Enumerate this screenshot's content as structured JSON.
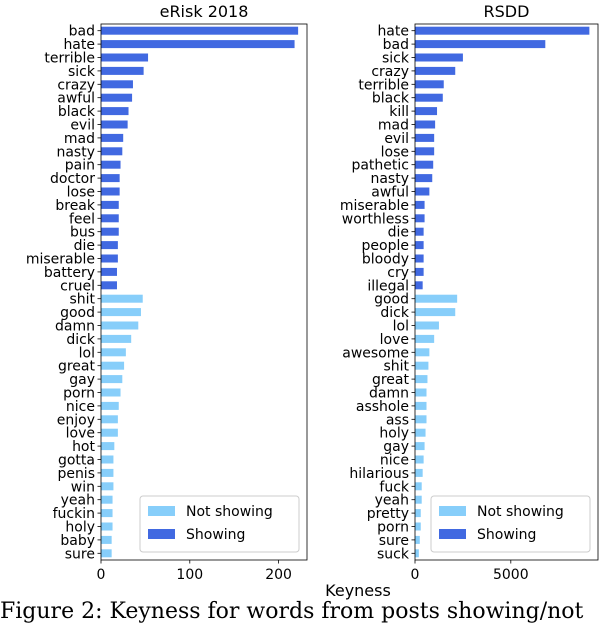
{
  "colors": {
    "showing": "#4169E1",
    "not_showing": "#87CEFA"
  },
  "legend": {
    "not_showing": "Not showing",
    "showing": "Showing"
  },
  "xlabel": "Keyness",
  "caption": "Figure 2: Keyness for words from posts showing/not",
  "chart_data": [
    {
      "type": "bar",
      "orientation": "horizontal",
      "title": "eRisk 2018",
      "xlim": [
        0,
        232
      ],
      "xticks": [
        0,
        100,
        200
      ],
      "legend_position": "lower-right",
      "categories": [
        "bad",
        "hate",
        "terrible",
        "sick",
        "crazy",
        "awful",
        "black",
        "evil",
        "mad",
        "nasty",
        "pain",
        "doctor",
        "lose",
        "break",
        "feel",
        "bus",
        "die",
        "miserable",
        "battery",
        "cruel",
        "shit",
        "good",
        "damn",
        "dick",
        "lol",
        "great",
        "gay",
        "porn",
        "nice",
        "enjoy",
        "love",
        "hot",
        "gotta",
        "penis",
        "win",
        "yeah",
        "fuckin",
        "holy",
        "baby",
        "sure"
      ],
      "values": [
        222,
        218,
        53,
        48,
        36,
        35,
        31,
        30,
        25,
        24,
        22,
        21,
        21,
        20,
        20,
        20,
        19,
        19,
        18,
        18,
        47,
        45,
        42,
        34,
        28,
        26,
        24,
        22,
        20,
        19,
        19,
        15,
        14,
        14,
        14,
        13,
        13,
        13,
        12,
        12
      ],
      "groups": [
        "showing",
        "showing",
        "showing",
        "showing",
        "showing",
        "showing",
        "showing",
        "showing",
        "showing",
        "showing",
        "showing",
        "showing",
        "showing",
        "showing",
        "showing",
        "showing",
        "showing",
        "showing",
        "showing",
        "showing",
        "not_showing",
        "not_showing",
        "not_showing",
        "not_showing",
        "not_showing",
        "not_showing",
        "not_showing",
        "not_showing",
        "not_showing",
        "not_showing",
        "not_showing",
        "not_showing",
        "not_showing",
        "not_showing",
        "not_showing",
        "not_showing",
        "not_showing",
        "not_showing",
        "not_showing",
        "not_showing"
      ]
    },
    {
      "type": "bar",
      "orientation": "horizontal",
      "title": "RSDD",
      "xlim": [
        0,
        9550
      ],
      "xticks": [
        0,
        5000
      ],
      "legend_position": "lower-right",
      "categories": [
        "hate",
        "bad",
        "sick",
        "crazy",
        "terrible",
        "black",
        "kill",
        "mad",
        "evil",
        "lose",
        "pathetic",
        "nasty",
        "awful",
        "miserable",
        "worthless",
        "die",
        "people",
        "bloody",
        "cry",
        "illegal",
        "good",
        "dick",
        "lol",
        "love",
        "awesome",
        "shit",
        "great",
        "damn",
        "asshole",
        "ass",
        "holy",
        "gay",
        "nice",
        "hilarious",
        "fuck",
        "yeah",
        "pretty",
        "porn",
        "sure",
        "suck"
      ],
      "values": [
        9100,
        6800,
        2500,
        2100,
        1500,
        1450,
        1150,
        1050,
        1000,
        1000,
        950,
        900,
        750,
        500,
        500,
        450,
        450,
        450,
        450,
        400,
        2200,
        2100,
        1250,
        1000,
        750,
        700,
        650,
        600,
        600,
        600,
        550,
        500,
        450,
        400,
        350,
        350,
        300,
        300,
        250,
        200
      ],
      "groups": [
        "showing",
        "showing",
        "showing",
        "showing",
        "showing",
        "showing",
        "showing",
        "showing",
        "showing",
        "showing",
        "showing",
        "showing",
        "showing",
        "showing",
        "showing",
        "showing",
        "showing",
        "showing",
        "showing",
        "showing",
        "not_showing",
        "not_showing",
        "not_showing",
        "not_showing",
        "not_showing",
        "not_showing",
        "not_showing",
        "not_showing",
        "not_showing",
        "not_showing",
        "not_showing",
        "not_showing",
        "not_showing",
        "not_showing",
        "not_showing",
        "not_showing",
        "not_showing",
        "not_showing",
        "not_showing",
        "not_showing"
      ]
    }
  ]
}
